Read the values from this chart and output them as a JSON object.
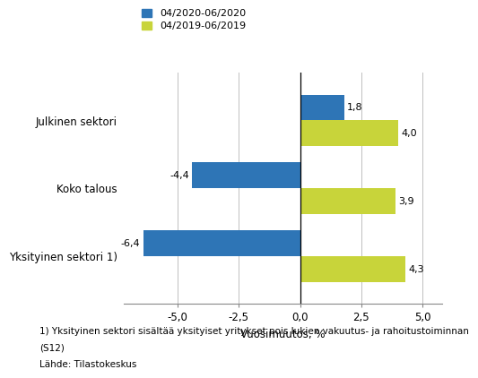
{
  "categories": [
    "Yksityinen sektori 1)",
    "Koko talous",
    "Julkinen sektori"
  ],
  "series": [
    {
      "label": "04/2020-06/2020",
      "color": "#2E75B6",
      "values": [
        -6.4,
        -4.4,
        1.8
      ]
    },
    {
      "label": "04/2019-06/2019",
      "color": "#C8D43A",
      "values": [
        4.3,
        3.9,
        4.0
      ]
    }
  ],
  "xlabel": "Vuosimuutos, %",
  "xlim": [
    -7.2,
    5.8
  ],
  "xticks": [
    -5.0,
    -2.5,
    0.0,
    2.5,
    5.0
  ],
  "xticklabels": [
    "-5,0",
    "-2,5",
    "0,0",
    "2,5",
    "5,0"
  ],
  "bar_height": 0.38,
  "footnote1": "1) Yksityinen sektori sisältää yksityiset yritykset pois lukien vakuutus- ja rahoitustoiminnan",
  "footnote2": "(S12)",
  "footnote3": "Lähde: Tilastokeskus",
  "value_labels": {
    "series0": [
      "-6,4",
      "-4,4",
      "1,8"
    ],
    "series1": [
      "4,3",
      "3,9",
      "4,0"
    ]
  },
  "background_color": "#ffffff",
  "grid_color": "#c0c0c0"
}
